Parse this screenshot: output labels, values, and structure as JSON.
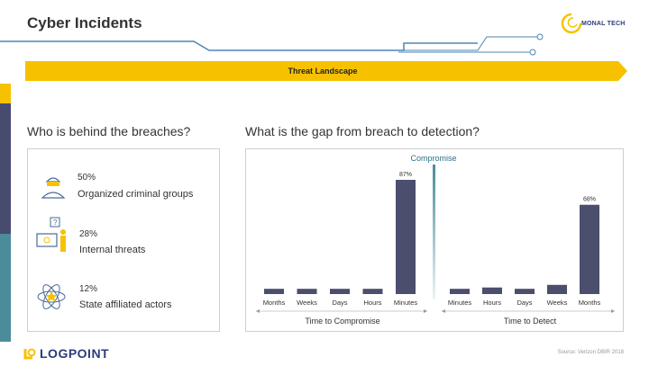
{
  "header": {
    "title": "Cyber Incidents",
    "brand": "MONAL TECH"
  },
  "banner": {
    "label": "Threat Landscape"
  },
  "left_panel": {
    "heading": "Who is behind the breaches?",
    "stats": [
      {
        "percent": "50%",
        "label": "Organized criminal groups",
        "icon": "hacker-icon"
      },
      {
        "percent": "28%",
        "label": "Internal threats",
        "icon": "insider-icon"
      },
      {
        "percent": "12%",
        "label": "State affiliated actors",
        "icon": "atom-icon"
      }
    ]
  },
  "right_panel": {
    "heading": "What is the gap from breach to detection?",
    "divider_label": "Compromise"
  },
  "chart_data": [
    {
      "type": "bar",
      "categories": [
        "Months",
        "Weeks",
        "Days",
        "Hours",
        "Minutes"
      ],
      "values": [
        4,
        4,
        4,
        4,
        87
      ],
      "labels": [
        "",
        "",
        "",
        "",
        "87%"
      ],
      "xlabel": "Time to Compromise",
      "ylim": [
        0,
        100
      ],
      "color": "#4b4e6d"
    },
    {
      "type": "bar",
      "categories": [
        "Minutes",
        "Hours",
        "Days",
        "Weeks",
        "Months"
      ],
      "values": [
        4,
        5,
        4,
        7,
        68
      ],
      "labels": [
        "",
        "",
        "",
        "",
        "68%"
      ],
      "xlabel": "Time to Detect",
      "ylim": [
        0,
        100
      ],
      "color": "#4b4e6d"
    }
  ],
  "footer": {
    "brand": "LOGPOINT",
    "source": "Source: Verizon DBIR 2018"
  },
  "colors": {
    "accent": "#f6c200",
    "navy": "#474b6d",
    "teal": "#4a8c99",
    "line_blue": "#4a86b5"
  }
}
